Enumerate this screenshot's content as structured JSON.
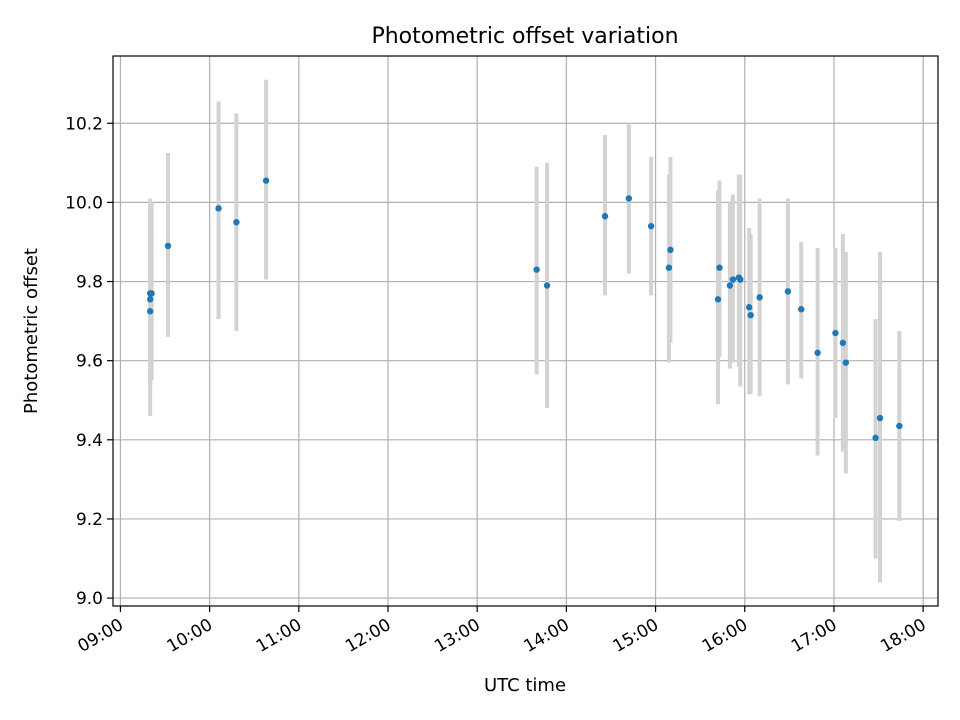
{
  "chart_data": {
    "type": "scatter",
    "title": "Photometric offset variation",
    "xlabel": "UTC time",
    "ylabel": "Photometric offset",
    "xlim": [
      "08:55",
      "18:10"
    ],
    "ylim": [
      8.98,
      10.37
    ],
    "grid": true,
    "x_ticks": [
      "09:00",
      "10:00",
      "11:00",
      "12:00",
      "13:00",
      "14:00",
      "15:00",
      "16:00",
      "17:00",
      "18:00"
    ],
    "y_ticks": [
      "9.0",
      "9.2",
      "9.4",
      "9.6",
      "9.8",
      "10.0",
      "10.2"
    ],
    "colors": {
      "point": "#1f77b4",
      "errorbar": "#d3d3d3",
      "grid": "#b0b0b0"
    },
    "points": [
      {
        "x": "09:20",
        "y": 9.77,
        "lo": 9.54,
        "hi": 10.0
      },
      {
        "x": "09:20",
        "y": 9.755,
        "lo": 9.46,
        "hi": 10.01
      },
      {
        "x": "09:20",
        "y": 9.725,
        "lo": 9.53,
        "hi": 9.95
      },
      {
        "x": "09:21",
        "y": 9.77,
        "lo": 9.55,
        "hi": 10.0
      },
      {
        "x": "09:32",
        "y": 9.89,
        "lo": 9.66,
        "hi": 10.125
      },
      {
        "x": "10:06",
        "y": 9.985,
        "lo": 9.705,
        "hi": 10.255
      },
      {
        "x": "10:18",
        "y": 9.95,
        "lo": 9.675,
        "hi": 10.225
      },
      {
        "x": "10:38",
        "y": 10.055,
        "lo": 9.805,
        "hi": 10.31
      },
      {
        "x": "13:40",
        "y": 9.83,
        "lo": 9.565,
        "hi": 10.09
      },
      {
        "x": "13:47",
        "y": 9.79,
        "lo": 9.48,
        "hi": 10.1
      },
      {
        "x": "14:26",
        "y": 9.965,
        "lo": 9.765,
        "hi": 10.17
      },
      {
        "x": "14:42",
        "y": 10.01,
        "lo": 9.82,
        "hi": 10.2
      },
      {
        "x": "14:57",
        "y": 9.94,
        "lo": 9.765,
        "hi": 10.115
      },
      {
        "x": "15:09",
        "y": 9.835,
        "lo": 9.595,
        "hi": 10.07
      },
      {
        "x": "15:10",
        "y": 9.88,
        "lo": 9.645,
        "hi": 10.115
      },
      {
        "x": "15:42",
        "y": 9.755,
        "lo": 9.49,
        "hi": 10.03
      },
      {
        "x": "15:43",
        "y": 9.835,
        "lo": 9.61,
        "hi": 10.055
      },
      {
        "x": "15:50",
        "y": 9.79,
        "lo": 9.58,
        "hi": 10.0
      },
      {
        "x": "15:52",
        "y": 9.805,
        "lo": 9.595,
        "hi": 10.02
      },
      {
        "x": "15:56",
        "y": 9.81,
        "lo": 9.585,
        "hi": 10.07
      },
      {
        "x": "15:57",
        "y": 9.805,
        "lo": 9.535,
        "hi": 10.07
      },
      {
        "x": "16:03",
        "y": 9.735,
        "lo": 9.515,
        "hi": 9.935
      },
      {
        "x": "16:04",
        "y": 9.715,
        "lo": 9.515,
        "hi": 9.92
      },
      {
        "x": "16:10",
        "y": 9.76,
        "lo": 9.51,
        "hi": 10.01
      },
      {
        "x": "16:29",
        "y": 9.775,
        "lo": 9.54,
        "hi": 10.01
      },
      {
        "x": "16:38",
        "y": 9.73,
        "lo": 9.555,
        "hi": 9.9
      },
      {
        "x": "16:49",
        "y": 9.62,
        "lo": 9.36,
        "hi": 9.885
      },
      {
        "x": "17:01",
        "y": 9.67,
        "lo": 9.455,
        "hi": 9.885
      },
      {
        "x": "17:06",
        "y": 9.645,
        "lo": 9.37,
        "hi": 9.92
      },
      {
        "x": "17:08",
        "y": 9.595,
        "lo": 9.315,
        "hi": 9.875
      },
      {
        "x": "17:28",
        "y": 9.405,
        "lo": 9.1,
        "hi": 9.705
      },
      {
        "x": "17:31",
        "y": 9.455,
        "lo": 9.04,
        "hi": 9.875
      },
      {
        "x": "17:44",
        "y": 9.435,
        "lo": 9.195,
        "hi": 9.675
      }
    ]
  }
}
